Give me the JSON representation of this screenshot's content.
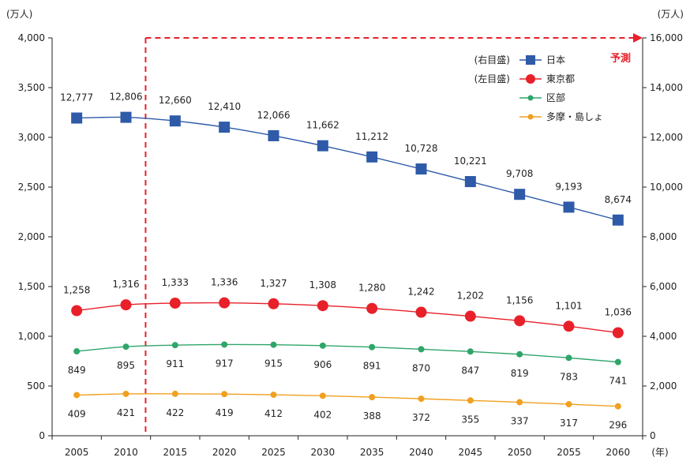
{
  "chart_data": {
    "type": "line",
    "x": [
      "2005",
      "2010",
      "2015",
      "2020",
      "2025",
      "2030",
      "2035",
      "2040",
      "2045",
      "2050",
      "2055",
      "2060"
    ],
    "xunit": "(年)",
    "left_axis": {
      "unit": "(万人)",
      "ylim": [
        0,
        4000
      ],
      "ticks": [
        "0",
        "500",
        "1,000",
        "1,500",
        "2,000",
        "2,500",
        "3,000",
        "3,500",
        "4,000"
      ]
    },
    "right_axis": {
      "unit": "(万人)",
      "ylim": [
        0,
        16000
      ],
      "ticks": [
        "0",
        "2,000",
        "4,000",
        "6,000",
        "8,000",
        "10,000",
        "12,000",
        "14,000",
        "16,000"
      ]
    },
    "forecast_label": "予測",
    "forecast_start": "2012",
    "legend": {
      "placement": "top-right",
      "right_axis_note": "(右目盛)",
      "left_axis_note": "(左目盛)"
    },
    "series": [
      {
        "name": "日本",
        "axis": "right",
        "color": "#2e5aa8",
        "marker": "square",
        "values": [
          12777,
          12806,
          12660,
          12410,
          12066,
          11662,
          11212,
          10728,
          10221,
          9708,
          9193,
          8674
        ],
        "labels": [
          "12,777",
          "12,806",
          "12,660",
          "12,410",
          "12,066",
          "11,662",
          "11,212",
          "10,728",
          "10,221",
          "9,708",
          "9,193",
          "8,674"
        ]
      },
      {
        "name": "東京都",
        "axis": "left",
        "color": "#e8202a",
        "marker": "circle",
        "values": [
          1258,
          1316,
          1333,
          1336,
          1327,
          1308,
          1280,
          1242,
          1202,
          1156,
          1101,
          1036
        ],
        "labels": [
          "1,258",
          "1,316",
          "1,333",
          "1,336",
          "1,327",
          "1,308",
          "1,280",
          "1,242",
          "1,202",
          "1,156",
          "1,101",
          "1,036"
        ]
      },
      {
        "name": "区部",
        "axis": "left",
        "color": "#2fa56a",
        "marker": "dot",
        "values": [
          849,
          895,
          911,
          917,
          915,
          906,
          891,
          870,
          847,
          819,
          783,
          741
        ],
        "labels": [
          "849",
          "895",
          "911",
          "917",
          "915",
          "906",
          "891",
          "870",
          "847",
          "819",
          "783",
          "741"
        ]
      },
      {
        "name": "多摩・島しょ",
        "axis": "left",
        "color": "#f0a020",
        "marker": "dot",
        "values": [
          409,
          421,
          422,
          419,
          412,
          402,
          388,
          372,
          355,
          337,
          317,
          296
        ],
        "labels": [
          "409",
          "421",
          "422",
          "419",
          "412",
          "402",
          "388",
          "372",
          "355",
          "337",
          "317",
          "296"
        ]
      }
    ]
  }
}
